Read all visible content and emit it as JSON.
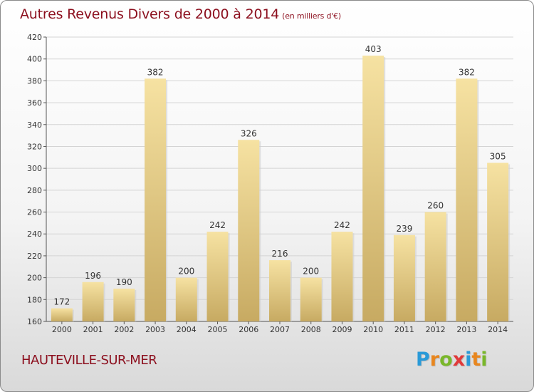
{
  "title": "Autres Revenus Divers de 2000 à 2014",
  "subtitle": "(en milliers d'€)",
  "location": "HAUTEVILLE-SUR-MER",
  "logo": {
    "letters": [
      "P",
      "r",
      "o",
      "x",
      "i",
      "t",
      "i"
    ],
    "colors": [
      "#2a9ad8",
      "#e8861e",
      "#79b72a",
      "#e03a3a",
      "#2a9ad8",
      "#e8861e",
      "#79b72a"
    ]
  },
  "colors": {
    "title": "#8c0f1e",
    "bar_light": "#f6e2a2",
    "bar_dark": "#c7aa62",
    "grid": "#d4d4d4"
  },
  "chart_data": {
    "type": "bar",
    "categories": [
      "2000",
      "2001",
      "2002",
      "2003",
      "2004",
      "2005",
      "2006",
      "2007",
      "2008",
      "2009",
      "2010",
      "2011",
      "2012",
      "2013",
      "2014"
    ],
    "values": [
      172,
      196,
      190,
      382,
      200,
      242,
      326,
      216,
      200,
      242,
      403,
      239,
      260,
      382,
      305
    ],
    "ylim": [
      160,
      420
    ],
    "yticks": [
      160,
      180,
      200,
      220,
      240,
      260,
      280,
      300,
      320,
      340,
      360,
      380,
      400,
      420
    ],
    "grid": true,
    "data_labels": true
  }
}
